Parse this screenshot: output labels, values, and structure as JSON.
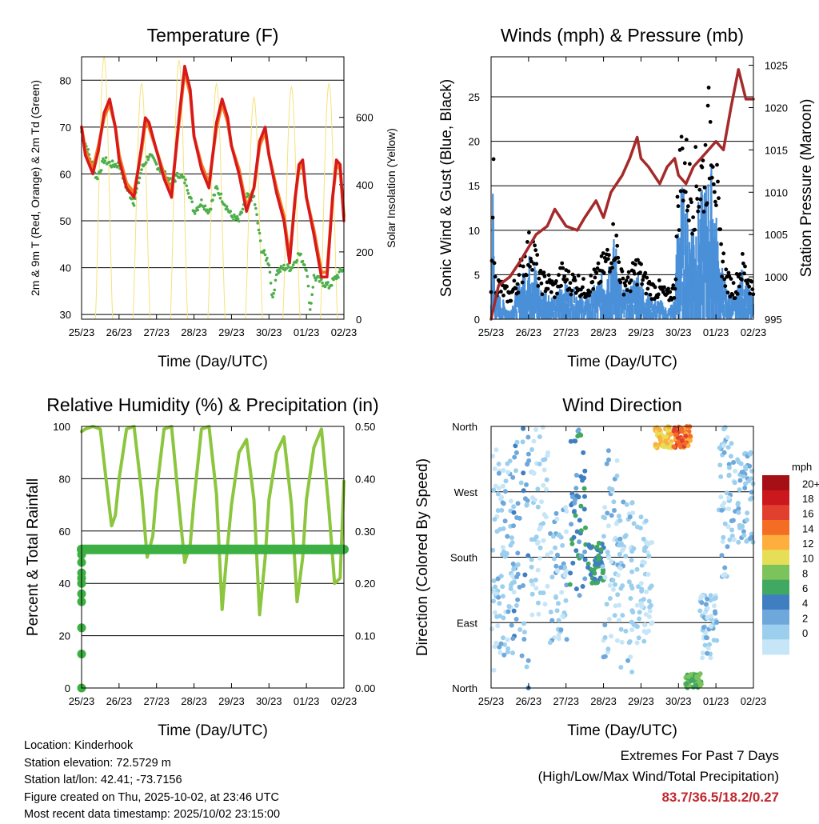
{
  "chart_data": [
    {
      "type": "line",
      "title": "Temperature (F)",
      "xlabel": "Time (Day/UTC)",
      "ylabel": "2m & 9m T (Red, Orange) & 2m Td (Green)",
      "ylabel_right": "Solar Insolation (Yellow)",
      "ylim": [
        29,
        85
      ],
      "yticks": [
        30,
        40,
        50,
        60,
        70,
        80
      ],
      "ylim_right": [
        0,
        780
      ],
      "yticks_right": [
        0,
        200,
        400,
        600
      ],
      "xticks": [
        "25/23",
        "26/23",
        "27/23",
        "28/23",
        "29/23",
        "30/23",
        "01/23",
        "02/23"
      ],
      "series": [
        {
          "name": "2m T",
          "color": "#d7191c",
          "x": [
            0,
            0.1,
            0.3,
            0.45,
            0.6,
            0.75,
            0.9,
            1.0,
            1.2,
            1.4,
            1.6,
            1.7,
            1.8,
            2.0,
            2.2,
            2.4,
            2.6,
            2.75,
            2.9,
            3.0,
            3.2,
            3.4,
            3.6,
            3.75,
            3.9,
            4.0,
            4.2,
            4.4,
            4.6,
            4.75,
            4.9,
            5.0,
            5.2,
            5.4,
            5.55,
            5.7,
            5.8,
            5.9,
            6.0,
            6.2,
            6.4,
            6.55,
            6.7,
            6.8,
            6.9,
            7.0
          ],
          "values": [
            70,
            64,
            60,
            65,
            73,
            76,
            70,
            63,
            57,
            55,
            66,
            72,
            71,
            65,
            59,
            55,
            72,
            83,
            78,
            68,
            61,
            57,
            71,
            76,
            72,
            66,
            60,
            52,
            57,
            67,
            70,
            64,
            56,
            50,
            41,
            55,
            62,
            63,
            55,
            47,
            38,
            38,
            55,
            63,
            62,
            50
          ]
        },
        {
          "name": "9m T",
          "color": "#f47b20",
          "x": [
            0,
            0.1,
            0.3,
            0.45,
            0.6,
            0.75,
            0.9,
            1.0,
            1.2,
            1.4,
            1.6,
            1.7,
            1.8,
            2.0,
            2.2,
            2.4,
            2.6,
            2.75,
            2.9,
            3.0,
            3.2,
            3.4,
            3.6,
            3.75,
            3.9,
            4.0,
            4.2,
            4.4,
            4.6,
            4.75,
            4.9,
            5.0,
            5.2,
            5.4,
            5.55,
            5.7,
            5.8,
            5.9,
            6.0,
            6.2,
            6.4,
            6.55,
            6.7,
            6.8,
            6.9,
            7.0
          ],
          "values": [
            70,
            65,
            61,
            66,
            72,
            75,
            70,
            64,
            58,
            56,
            65,
            71,
            70,
            65,
            60,
            56,
            71,
            82,
            77,
            68,
            62,
            58,
            70,
            75,
            71,
            66,
            61,
            53,
            57,
            66,
            69,
            64,
            57,
            51,
            42,
            55,
            61,
            62,
            55,
            48,
            39,
            39,
            55,
            62,
            61,
            51
          ]
        },
        {
          "name": "2m Td",
          "color": "#4daf4a",
          "x": [
            0,
            0.2,
            0.4,
            0.6,
            0.8,
            1.0,
            1.2,
            1.4,
            1.6,
            1.8,
            2.0,
            2.2,
            2.4,
            2.6,
            2.8,
            3.0,
            3.2,
            3.4,
            3.6,
            3.8,
            4.0,
            4.2,
            4.4,
            4.6,
            4.8,
            5.0,
            5.1,
            5.2,
            5.4,
            5.6,
            5.8,
            6.0,
            6.1,
            6.2,
            6.4,
            6.6,
            6.8,
            7.0
          ],
          "values": [
            69,
            64,
            59,
            63,
            62,
            62,
            57,
            54,
            61,
            64,
            62,
            60,
            58,
            60,
            58,
            52,
            54,
            52,
            57,
            54,
            51,
            50,
            55,
            55,
            44,
            41,
            33,
            39,
            40,
            40,
            43,
            40,
            31,
            38,
            37,
            36,
            38,
            40
          ]
        },
        {
          "name": "Solar Insolation",
          "color": "#f6e27a",
          "axis": "right",
          "peaks_x": [
            0.6,
            1.6,
            2.6,
            3.6,
            4.6,
            5.6,
            6.6
          ],
          "peaks": [
            780,
            700,
            770,
            700,
            660,
            690,
            700
          ]
        }
      ]
    },
    {
      "type": "line",
      "title": "Winds (mph) & Pressure (mb)",
      "xlabel": "Time (Day/UTC)",
      "ylabel": "Sonic Wind & Gust (Blue, Black)",
      "ylabel_right": "Station Pressure (Maroon)",
      "ylim": [
        0,
        29.5
      ],
      "yticks": [
        0,
        5,
        10,
        15,
        20,
        25
      ],
      "ylim_right": [
        995,
        1026
      ],
      "yticks_right": [
        995,
        1000,
        1005,
        1010,
        1015,
        1020,
        1025
      ],
      "xticks": [
        "25/23",
        "26/23",
        "27/23",
        "28/23",
        "29/23",
        "30/23",
        "01/23",
        "02/23"
      ],
      "series": [
        {
          "name": "Sonic Wind",
          "color": "#4a90d9",
          "x": [
            0,
            0.05,
            0.1,
            0.3,
            0.5,
            0.7,
            0.9,
            1.1,
            1.3,
            1.5,
            1.7,
            1.9,
            2.1,
            2.3,
            2.5,
            2.7,
            2.9,
            3.1,
            3.3,
            3.5,
            3.7,
            3.9,
            4.1,
            4.3,
            4.5,
            4.7,
            4.9,
            5.0,
            5.1,
            5.3,
            5.5,
            5.7,
            5.9,
            6.1,
            6.3,
            6.5,
            6.7,
            6.9,
            7.0
          ],
          "values": [
            2,
            14,
            3,
            2,
            1,
            3,
            5,
            7,
            3,
            3,
            2,
            4,
            3,
            3,
            2,
            3,
            4,
            6,
            8,
            3,
            3,
            5,
            3,
            2,
            2,
            1,
            2,
            12,
            13,
            10,
            11,
            13,
            15,
            6,
            3,
            2,
            5,
            3,
            2
          ]
        },
        {
          "name": "Gust",
          "color": "#000000",
          "x": [
            0,
            0.05,
            0.1,
            0.3,
            0.5,
            0.7,
            0.9,
            1.1,
            1.3,
            1.5,
            1.7,
            1.9,
            2.1,
            2.3,
            2.5,
            2.7,
            2.9,
            3.1,
            3.3,
            3.5,
            3.7,
            3.9,
            4.1,
            4.3,
            4.5,
            4.7,
            4.9,
            5.0,
            5.1,
            5.3,
            5.5,
            5.7,
            5.9,
            6.1,
            6.3,
            6.5,
            6.7,
            6.9,
            7.0
          ],
          "values": [
            3,
            22.5,
            5,
            4,
            3,
            5,
            8,
            10,
            5,
            5,
            4,
            6,
            5,
            5,
            4,
            5,
            6,
            8,
            11,
            5,
            5,
            7,
            5,
            4,
            4,
            3,
            4,
            17,
            22,
            17,
            18,
            20,
            27.5,
            10,
            5,
            4,
            7,
            5,
            4
          ]
        },
        {
          "name": "Station Pressure",
          "color": "#a52a2a",
          "axis": "right",
          "x": [
            0,
            0.2,
            0.5,
            0.8,
            1.0,
            1.2,
            1.5,
            1.7,
            2.0,
            2.3,
            2.5,
            2.8,
            3.0,
            3.2,
            3.5,
            3.7,
            3.9,
            4.0,
            4.2,
            4.5,
            4.7,
            4.9,
            5.0,
            5.2,
            5.4,
            5.6,
            5.8,
            6.0,
            6.2,
            6.4,
            6.6,
            6.8,
            7.0
          ],
          "values": [
            995,
            999,
            1000,
            1002,
            1003.5,
            1005,
            1006,
            1008,
            1006,
            1005.5,
            1007,
            1009,
            1007,
            1010,
            1012,
            1014,
            1016.5,
            1014,
            1013,
            1011,
            1013,
            1014,
            1012,
            1011,
            1013,
            1014,
            1015,
            1016,
            1015,
            1020,
            1024.5,
            1021,
            1021
          ]
        }
      ]
    },
    {
      "type": "line",
      "title": "Relative Humidity (%) & Precipitation (in)",
      "xlabel": "Time (Day/UTC)",
      "ylabel": "Percent & Total Rainfall",
      "ylim": [
        0,
        100
      ],
      "yticks": [
        0,
        20,
        40,
        60,
        80,
        100
      ],
      "ylim_right": [
        0,
        0.5
      ],
      "yticks_right": [
        "0.00",
        "0.10",
        "0.20",
        "0.30",
        "0.40",
        "0.50"
      ],
      "xticks": [
        "25/23",
        "26/23",
        "27/23",
        "28/23",
        "29/23",
        "30/23",
        "01/23",
        "02/23"
      ],
      "series": [
        {
          "name": "Relative Humidity",
          "color": "#8cc63f",
          "x": [
            0,
            0.1,
            0.3,
            0.5,
            0.65,
            0.8,
            0.9,
            1.0,
            1.2,
            1.4,
            1.6,
            1.75,
            1.9,
            2.0,
            2.2,
            2.4,
            2.6,
            2.75,
            2.9,
            3.0,
            3.2,
            3.4,
            3.6,
            3.75,
            3.9,
            4.0,
            4.2,
            4.4,
            4.6,
            4.75,
            4.9,
            5.0,
            5.2,
            5.4,
            5.6,
            5.75,
            5.9,
            6.0,
            6.2,
            6.4,
            6.6,
            6.75,
            6.9,
            7.0
          ],
          "values": [
            98,
            99,
            100,
            99,
            80,
            62,
            66,
            80,
            99,
            100,
            75,
            50,
            58,
            75,
            99,
            100,
            70,
            48,
            55,
            72,
            99,
            100,
            74,
            30,
            55,
            70,
            90,
            95,
            72,
            28,
            50,
            72,
            90,
            96,
            70,
            33,
            50,
            72,
            92,
            99,
            68,
            40,
            42,
            79
          ]
        },
        {
          "name": "Total Precipitation",
          "color": "#3cb043",
          "axis": "right",
          "x": [
            0,
            0,
            0,
            0,
            0,
            0,
            0,
            0,
            0,
            0,
            0.05,
            7.0
          ],
          "values": [
            0,
            0.065,
            0.115,
            0.165,
            0.18,
            0.2,
            0.21,
            0.22,
            0.24,
            0.255,
            0.265,
            0.265
          ]
        }
      ]
    },
    {
      "type": "scatter",
      "title": "Wind Direction",
      "xlabel": "Time (Day/UTC)",
      "ylabel": "Direction (Colored By Speed)",
      "ylim": [
        0,
        360
      ],
      "yticks": [
        "North",
        "East",
        "South",
        "West",
        "North"
      ],
      "ytick_values": [
        0,
        90,
        180,
        270,
        360
      ],
      "xticks": [
        "25/23",
        "26/23",
        "27/23",
        "28/23",
        "29/23",
        "30/23",
        "01/23",
        "02/23"
      ],
      "colorbar_title": "mph",
      "colorbar_labels": [
        "20+",
        "18",
        "16",
        "14",
        "12",
        "10",
        "8",
        "6",
        "4",
        "2",
        "0"
      ],
      "colorbar_colors": [
        "#a50f15",
        "#cb181d",
        "#e2402e",
        "#f46d24",
        "#fdae3d",
        "#e6de56",
        "#7dc35b",
        "#41a862",
        "#3f7fc1",
        "#6ea8db",
        "#9ccfee",
        "#c6e6f7"
      ],
      "clusters": [
        {
          "x": 0.1,
          "dir_lo": 20,
          "dir_hi": 340,
          "speed": 2
        },
        {
          "x": 0.4,
          "dir_lo": 40,
          "dir_hi": 320,
          "speed": 3
        },
        {
          "x": 0.8,
          "dir_lo": 0,
          "dir_hi": 360,
          "speed": 5
        },
        {
          "x": 1.3,
          "dir_lo": 100,
          "dir_hi": 360,
          "speed": 2
        },
        {
          "x": 1.8,
          "dir_lo": 60,
          "dir_hi": 250,
          "speed": 3
        },
        {
          "x": 2.3,
          "dir_lo": 120,
          "dir_hi": 360,
          "speed": 7
        },
        {
          "x": 2.8,
          "dir_lo": 140,
          "dir_hi": 200,
          "speed": 8
        },
        {
          "x": 3.2,
          "dir_lo": 40,
          "dir_hi": 330,
          "speed": 3
        },
        {
          "x": 3.6,
          "dir_lo": 20,
          "dir_hi": 260,
          "speed": 3
        },
        {
          "x": 4.1,
          "dir_lo": 60,
          "dir_hi": 240,
          "speed": 2
        },
        {
          "x": 4.6,
          "dir_lo": 330,
          "dir_hi": 360,
          "speed": 14
        },
        {
          "x": 5.1,
          "dir_lo": 330,
          "dir_hi": 360,
          "speed": 17
        },
        {
          "x": 5.4,
          "dir_lo": 0,
          "dir_hi": 20,
          "speed": 10
        },
        {
          "x": 5.8,
          "dir_lo": 40,
          "dir_hi": 130,
          "speed": 3
        },
        {
          "x": 6.3,
          "dir_lo": 150,
          "dir_hi": 360,
          "speed": 3
        },
        {
          "x": 6.8,
          "dir_lo": 200,
          "dir_hi": 330,
          "speed": 4
        }
      ]
    }
  ],
  "info": {
    "location": "Location: Kinderhook",
    "elevation": "Station elevation: 72.5729 m",
    "latlon": "Station lat/lon: 42.41; -73.7156",
    "created": "Figure created on Thu, 2025-10-02, at 23:46 UTC",
    "recent": "Most recent data timestamp: 2025/10/02 23:15:00"
  },
  "extremes": {
    "title": "Extremes For Past 7 Days",
    "subtitle": "(High/Low/Max Wind/Total Precipitation)",
    "values": "83.7/36.5/18.2/0.27"
  }
}
